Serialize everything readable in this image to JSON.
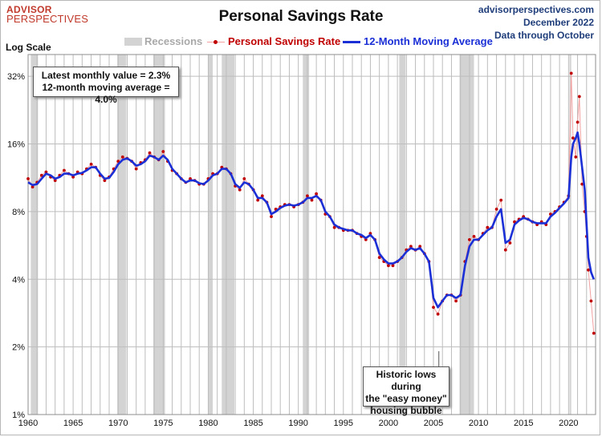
{
  "header": {
    "logo_line1": "ADVISOR",
    "logo_line2": "PERSPECTIVES",
    "title": "Personal Savings Rate",
    "source_line1": "advisorperspectives.com",
    "source_line2": "December 2022",
    "source_line3": "Data through October",
    "scale_label": "Log Scale"
  },
  "legend": {
    "recessions": "Recessions",
    "savings_rate": "Personal Savings Rate",
    "moving_average": "12-Month Moving Average"
  },
  "infobox": {
    "line1": "Latest monthly value = 2.3%",
    "line2": "12-month moving average = 4.0%"
  },
  "annotation": {
    "line1": "Historic lows during",
    "line2": "the \"easy money\"",
    "line3": "housing bubble"
  },
  "colors": {
    "monthly_dots": "#c00000",
    "monthly_line": "#f2a0a0",
    "moving_average": "#1a2fd6",
    "recession_shading": "#d3d3d3",
    "title": "#111111",
    "source_text": "#1f3d7a",
    "logo": "#c0392b"
  },
  "chart_data": {
    "type": "line",
    "title": "Personal Savings Rate",
    "yscale": "log",
    "ylabel": "",
    "xlabel": "",
    "ylim": [
      1,
      40
    ],
    "xlim": [
      1960,
      2023
    ],
    "y_ticks": [
      1,
      2,
      4,
      8,
      16,
      32
    ],
    "y_tick_labels": [
      "1%",
      "2%",
      "4%",
      "8%",
      "16%",
      "32%"
    ],
    "x_ticks": [
      1960,
      1965,
      1970,
      1975,
      1980,
      1985,
      1990,
      1995,
      2000,
      2005,
      2010,
      2015,
      2020
    ],
    "grid": true,
    "recessions": [
      [
        1960.3,
        1961.1
      ],
      [
        1969.9,
        1970.9
      ],
      [
        1973.9,
        1975.2
      ],
      [
        1980.0,
        1980.5
      ],
      [
        1981.5,
        1982.9
      ],
      [
        1990.5,
        1991.2
      ],
      [
        2001.2,
        2001.9
      ],
      [
        2007.9,
        2009.5
      ],
      [
        2020.1,
        2020.3
      ]
    ],
    "series": [
      {
        "name": "Personal Savings Rate",
        "x": [
          1960.0,
          1960.5,
          1961.0,
          1961.5,
          1962.0,
          1962.5,
          1963.0,
          1963.5,
          1964.0,
          1964.5,
          1965.0,
          1965.5,
          1966.0,
          1966.5,
          1967.0,
          1967.5,
          1968.0,
          1968.5,
          1969.0,
          1969.5,
          1970.0,
          1970.5,
          1971.0,
          1971.5,
          1972.0,
          1972.5,
          1973.0,
          1973.5,
          1974.0,
          1974.5,
          1975.0,
          1975.5,
          1976.0,
          1976.5,
          1977.0,
          1977.5,
          1978.0,
          1978.5,
          1979.0,
          1979.5,
          1980.0,
          1980.5,
          1981.0,
          1981.5,
          1982.0,
          1982.5,
          1983.0,
          1983.5,
          1984.0,
          1984.5,
          1985.0,
          1985.5,
          1986.0,
          1986.5,
          1987.0,
          1987.5,
          1988.0,
          1988.5,
          1989.0,
          1989.5,
          1990.0,
          1990.5,
          1991.0,
          1991.5,
          1992.0,
          1992.5,
          1993.0,
          1993.5,
          1994.0,
          1994.5,
          1995.0,
          1995.5,
          1996.0,
          1996.5,
          1997.0,
          1997.5,
          1998.0,
          1998.5,
          1999.0,
          1999.5,
          2000.0,
          2000.5,
          2001.0,
          2001.5,
          2002.0,
          2002.5,
          2003.0,
          2003.5,
          2004.0,
          2004.5,
          2005.0,
          2005.5,
          2006.0,
          2006.5,
          2007.0,
          2007.5,
          2008.0,
          2008.5,
          2009.0,
          2009.5,
          2010.0,
          2010.5,
          2011.0,
          2011.5,
          2012.0,
          2012.5,
          2013.0,
          2013.5,
          2014.0,
          2014.5,
          2015.0,
          2015.5,
          2016.0,
          2016.5,
          2017.0,
          2017.5,
          2018.0,
          2018.5,
          2019.0,
          2019.5,
          2020.0,
          2020.3,
          2020.5,
          2020.8,
          2021.0,
          2021.2,
          2021.5,
          2021.8,
          2022.0,
          2022.2,
          2022.5,
          2022.8
        ],
        "values": [
          11.2,
          10.3,
          10.8,
          11.6,
          12.0,
          11.4,
          11.0,
          11.6,
          12.2,
          11.8,
          11.4,
          12.0,
          11.8,
          12.4,
          13.0,
          12.6,
          11.6,
          11.0,
          11.4,
          12.4,
          13.4,
          14.0,
          13.8,
          13.4,
          12.4,
          13.2,
          13.6,
          14.6,
          14.0,
          13.6,
          14.8,
          13.4,
          12.2,
          11.8,
          11.2,
          10.8,
          11.2,
          11.0,
          10.6,
          10.6,
          11.2,
          11.8,
          11.8,
          12.6,
          12.4,
          11.8,
          10.4,
          10.0,
          11.2,
          10.6,
          10.0,
          9.0,
          9.4,
          8.8,
          7.6,
          8.2,
          8.4,
          8.6,
          8.6,
          8.4,
          8.6,
          8.8,
          9.4,
          9.0,
          9.6,
          9.0,
          7.8,
          7.6,
          6.8,
          6.8,
          6.6,
          6.6,
          6.6,
          6.4,
          6.2,
          6.0,
          6.4,
          6.0,
          5.0,
          4.8,
          4.6,
          4.6,
          4.8,
          5.0,
          5.4,
          5.6,
          5.4,
          5.6,
          5.2,
          4.8,
          3.0,
          2.8,
          3.2,
          3.4,
          3.4,
          3.2,
          3.4,
          4.8,
          6.0,
          6.2,
          6.0,
          6.4,
          6.8,
          6.8,
          8.2,
          9.0,
          5.4,
          5.8,
          7.2,
          7.4,
          7.6,
          7.4,
          7.2,
          7.0,
          7.2,
          7.0,
          7.8,
          8.0,
          8.4,
          8.8,
          9.4,
          33.0,
          17.0,
          14.0,
          20.0,
          26.0,
          10.6,
          8.0,
          6.2,
          4.4,
          3.2,
          2.3
        ]
      },
      {
        "name": "12-Month Moving Average",
        "x": [
          1960.0,
          1960.5,
          1961.0,
          1961.5,
          1962.0,
          1962.5,
          1963.0,
          1963.5,
          1964.0,
          1964.5,
          1965.0,
          1965.5,
          1966.0,
          1966.5,
          1967.0,
          1967.5,
          1968.0,
          1968.5,
          1969.0,
          1969.5,
          1970.0,
          1970.5,
          1971.0,
          1971.5,
          1972.0,
          1972.5,
          1973.0,
          1973.5,
          1974.0,
          1974.5,
          1975.0,
          1975.5,
          1976.0,
          1976.5,
          1977.0,
          1977.5,
          1978.0,
          1978.5,
          1979.0,
          1979.5,
          1980.0,
          1980.5,
          1981.0,
          1981.5,
          1982.0,
          1982.5,
          1983.0,
          1983.5,
          1984.0,
          1984.5,
          1985.0,
          1985.5,
          1986.0,
          1986.5,
          1987.0,
          1987.5,
          1988.0,
          1988.5,
          1989.0,
          1989.5,
          1990.0,
          1990.5,
          1991.0,
          1991.5,
          1992.0,
          1992.5,
          1993.0,
          1993.5,
          1994.0,
          1994.5,
          1995.0,
          1995.5,
          1996.0,
          1996.5,
          1997.0,
          1997.5,
          1998.0,
          1998.5,
          1999.0,
          1999.5,
          2000.0,
          2000.5,
          2001.0,
          2001.5,
          2002.0,
          2002.5,
          2003.0,
          2003.5,
          2004.0,
          2004.5,
          2005.0,
          2005.5,
          2006.0,
          2006.5,
          2007.0,
          2007.5,
          2008.0,
          2008.5,
          2009.0,
          2009.5,
          2010.0,
          2010.5,
          2011.0,
          2011.5,
          2012.0,
          2012.5,
          2013.0,
          2013.5,
          2014.0,
          2014.5,
          2015.0,
          2015.5,
          2016.0,
          2016.5,
          2017.0,
          2017.5,
          2018.0,
          2018.5,
          2019.0,
          2019.5,
          2020.0,
          2020.3,
          2020.5,
          2020.8,
          2021.0,
          2021.2,
          2021.5,
          2021.8,
          2022.0,
          2022.2,
          2022.5,
          2022.8
        ],
        "values": [
          10.8,
          10.5,
          10.6,
          11.2,
          11.8,
          11.6,
          11.2,
          11.4,
          11.8,
          11.8,
          11.6,
          11.8,
          11.9,
          12.2,
          12.6,
          12.6,
          11.8,
          11.2,
          11.3,
          12.0,
          13.0,
          13.6,
          13.8,
          13.4,
          12.8,
          13.0,
          13.4,
          14.2,
          14.0,
          13.6,
          14.2,
          13.6,
          12.4,
          11.8,
          11.2,
          10.8,
          11.0,
          11.0,
          10.7,
          10.6,
          11.0,
          11.6,
          11.8,
          12.4,
          12.4,
          11.8,
          10.6,
          10.2,
          10.8,
          10.6,
          10.0,
          9.2,
          9.2,
          8.8,
          7.8,
          8.0,
          8.3,
          8.5,
          8.6,
          8.5,
          8.6,
          8.8,
          9.2,
          9.2,
          9.4,
          9.0,
          8.0,
          7.6,
          7.0,
          6.8,
          6.7,
          6.6,
          6.6,
          6.4,
          6.3,
          6.1,
          6.3,
          6.0,
          5.2,
          4.9,
          4.7,
          4.7,
          4.8,
          5.0,
          5.3,
          5.5,
          5.4,
          5.5,
          5.2,
          4.8,
          3.3,
          3.0,
          3.2,
          3.4,
          3.4,
          3.3,
          3.4,
          4.6,
          5.6,
          6.0,
          6.0,
          6.3,
          6.6,
          6.8,
          7.6,
          8.2,
          5.8,
          6.0,
          7.0,
          7.3,
          7.5,
          7.4,
          7.2,
          7.1,
          7.1,
          7.1,
          7.6,
          7.9,
          8.3,
          8.7,
          9.2,
          14.0,
          16.0,
          17.0,
          18.0,
          16.0,
          12.6,
          10.0,
          7.0,
          5.0,
          4.3,
          4.0
        ]
      }
    ]
  }
}
